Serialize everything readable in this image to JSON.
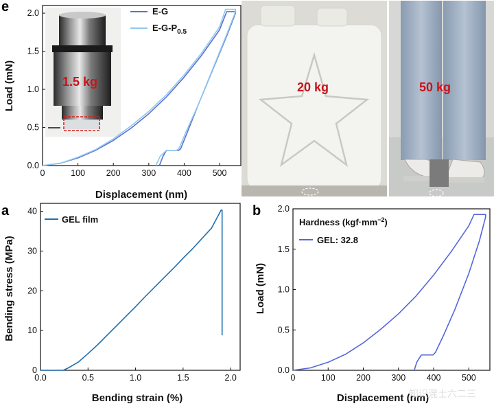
{
  "panels": {
    "e": {
      "label": "e"
    },
    "a": {
      "label": "a"
    },
    "b": {
      "label": "b"
    }
  },
  "photos": {
    "inset_weight": "1.5 kg",
    "jerrycan_weight": "20 kg",
    "person_weight": "50 kg"
  },
  "legend_text": {
    "hardness_title": "Hardness (kgf·mm",
    "hardness_sup": "−2",
    "hardness_close": ")",
    "e_series_2_base": "E-G-P",
    "e_series_2_sub": "0.5"
  },
  "watermark": "知识混士六二三",
  "colors": {
    "e_g": "#5b6fd6",
    "e_g_p": "#8ec8ee",
    "gel_film": "#1f6fae",
    "gel_hardness": "#5566dd",
    "kg_label": "#c8151b"
  },
  "chart_data": [
    {
      "panel": "e",
      "type": "line",
      "xlabel": "Displacement (nm)",
      "ylabel": "Load (mN)",
      "xlim": [
        0,
        560
      ],
      "ylim": [
        0,
        2.1
      ],
      "xticks": [
        "0",
        "100",
        "200",
        "300",
        "400",
        "500"
      ],
      "yticks": [
        "0.0",
        "0.5",
        "1.0",
        "1.5",
        "2.0"
      ],
      "legend_position": "top-right",
      "series": [
        {
          "name": "E-G",
          "x": [
            0,
            50,
            100,
            150,
            200,
            250,
            300,
            350,
            400,
            450,
            500,
            520,
            545,
            545,
            520,
            480,
            440,
            410,
            390,
            385,
            350,
            340,
            330
          ],
          "y": [
            0,
            0.03,
            0.1,
            0.2,
            0.33,
            0.49,
            0.68,
            0.9,
            1.16,
            1.45,
            1.78,
            2.02,
            2.02,
            2.0,
            1.7,
            1.25,
            0.8,
            0.45,
            0.22,
            0.2,
            0.2,
            0.12,
            0
          ]
        },
        {
          "name": "E-G-P",
          "x": [
            0,
            50,
            100,
            150,
            200,
            250,
            300,
            350,
            400,
            450,
            500,
            517,
            545,
            545,
            520,
            480,
            440,
            405,
            385,
            378,
            350,
            332,
            320
          ],
          "y": [
            0,
            0.03,
            0.11,
            0.21,
            0.35,
            0.52,
            0.71,
            0.93,
            1.19,
            1.48,
            1.82,
            2.05,
            2.05,
            2.02,
            1.72,
            1.26,
            0.8,
            0.44,
            0.22,
            0.2,
            0.2,
            0.12,
            0
          ]
        }
      ]
    },
    {
      "panel": "a",
      "type": "line",
      "xlabel": "Bending strain (%)",
      "ylabel": "Bending stress (MPa)",
      "xlim": [
        0,
        2.1
      ],
      "ylim": [
        0,
        42
      ],
      "xticks": [
        "0.0",
        "0.5",
        "1.0",
        "1.5",
        "2.0"
      ],
      "yticks": [
        "0",
        "10",
        "20",
        "30",
        "40"
      ],
      "legend_position": "top-left",
      "series": [
        {
          "name": "GEL film",
          "x": [
            0,
            0.24,
            0.3,
            0.4,
            0.5,
            0.6,
            0.7,
            0.8,
            0.9,
            1.0,
            1.1,
            1.2,
            1.3,
            1.4,
            1.5,
            1.6,
            1.7,
            1.8,
            1.9,
            1.91,
            1.91
          ],
          "y": [
            0,
            0,
            0.7,
            2.1,
            4.2,
            6.4,
            8.8,
            11.2,
            13.6,
            16.0,
            18.5,
            20.9,
            23.3,
            25.7,
            28.2,
            30.6,
            33.2,
            35.8,
            40.3,
            40.3,
            8.8
          ]
        }
      ]
    },
    {
      "panel": "b",
      "type": "line",
      "xlabel": "Displacement (nm)",
      "ylabel": "Load (mN)",
      "xlim": [
        0,
        560
      ],
      "ylim": [
        0,
        2.0
      ],
      "xticks": [
        "0",
        "100",
        "200",
        "300",
        "400",
        "500"
      ],
      "yticks": [
        "0.0",
        "0.5",
        "1.0",
        "1.5",
        "2.0"
      ],
      "legend_position": "top-left",
      "series": [
        {
          "name": "GEL: 32.8",
          "x": [
            0,
            50,
            100,
            150,
            200,
            250,
            300,
            350,
            400,
            450,
            500,
            515,
            548,
            548,
            530,
            500,
            460,
            430,
            405,
            398,
            365,
            352,
            345
          ],
          "y": [
            0,
            0.03,
            0.1,
            0.2,
            0.34,
            0.51,
            0.7,
            0.92,
            1.18,
            1.47,
            1.79,
            1.93,
            1.93,
            1.9,
            1.6,
            1.2,
            0.75,
            0.45,
            0.22,
            0.19,
            0.19,
            0.1,
            0
          ]
        }
      ]
    }
  ]
}
